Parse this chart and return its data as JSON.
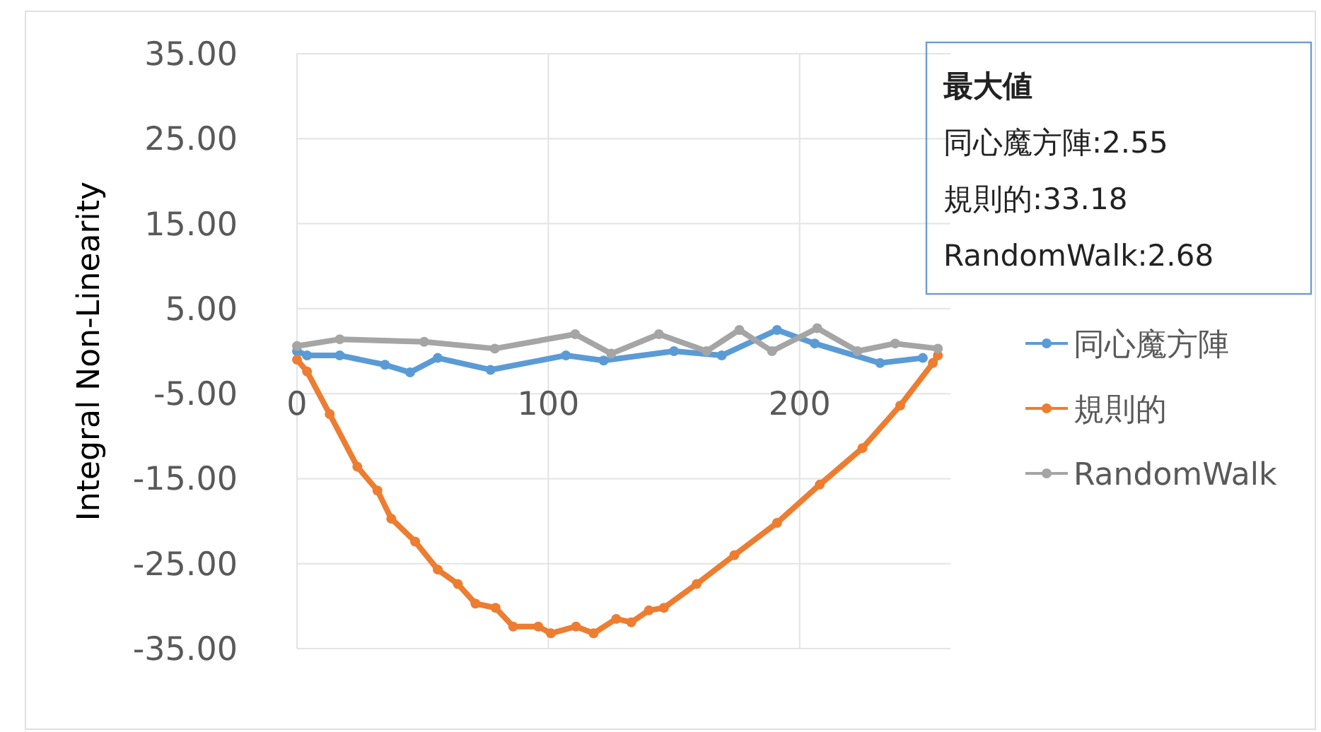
{
  "chart_data": {
    "type": "line",
    "ylabel": "Integral Non-Linearity",
    "xlim": [
      0,
      260
    ],
    "xticks": [
      0,
      100,
      200
    ],
    "ylim": [
      -35,
      35
    ],
    "yticks": [
      {
        "value": 35,
        "label": "35.00"
      },
      {
        "value": 25,
        "label": "25.00"
      },
      {
        "value": 15,
        "label": "15.00"
      },
      {
        "value": 5,
        "label": "5.00"
      },
      {
        "value": -5,
        "label": "-5.00"
      },
      {
        "value": -15,
        "label": "-15.00"
      },
      {
        "value": -25,
        "label": "-25.00"
      },
      {
        "value": -35,
        "label": "-35.00"
      }
    ],
    "grid": true,
    "legend": "right",
    "marker": "circle",
    "line_style": "solid",
    "annotations": [
      "最大値",
      "同心魔方陣:2.55",
      "規則的:33.18",
      "RandomWalk:2.68"
    ],
    "series": [
      {
        "name": "同心魔方陣",
        "color": "#5b9bd5",
        "x": [
          0,
          4,
          17,
          35,
          45,
          56,
          77,
          107,
          122,
          150,
          169,
          191,
          206,
          232,
          249
        ],
        "values": [
          0,
          -0.5,
          -0.5,
          -1.6,
          -2.5,
          -0.8,
          -2.2,
          -0.5,
          -1.1,
          0,
          -0.5,
          2.5,
          0.9,
          -1.4,
          -0.8
        ]
      },
      {
        "name": "規則的",
        "color": "#ed7d31",
        "x": [
          0,
          4,
          13,
          24,
          32,
          37.5,
          47,
          56,
          64,
          71,
          79,
          86,
          96,
          101,
          111,
          118,
          127,
          133,
          140,
          146,
          159,
          174,
          191,
          208,
          225,
          240,
          253,
          255
        ],
        "values": [
          -1,
          -2.4,
          -7.4,
          -13.6,
          -16.4,
          -19.7,
          -22.4,
          -25.7,
          -27.4,
          -29.7,
          -30.2,
          -32.4,
          -32.4,
          -33.2,
          -32.4,
          -33.2,
          -31.5,
          -31.9,
          -30.5,
          -30.2,
          -27.4,
          -24.0,
          -20.2,
          -15.7,
          -11.4,
          -6.4,
          -1.4,
          -0.5
        ]
      },
      {
        "name": "RandomWalk",
        "color": "#a5a5a5",
        "x": [
          0,
          17,
          50.6,
          78.7,
          110.7,
          125,
          144,
          163,
          176,
          189,
          207,
          223,
          238,
          255
        ],
        "values": [
          0.6,
          1.4,
          1.1,
          0.3,
          2.0,
          -0.3,
          2.0,
          0,
          2.5,
          0,
          2.7,
          0,
          0.9,
          0.3
        ]
      }
    ]
  }
}
